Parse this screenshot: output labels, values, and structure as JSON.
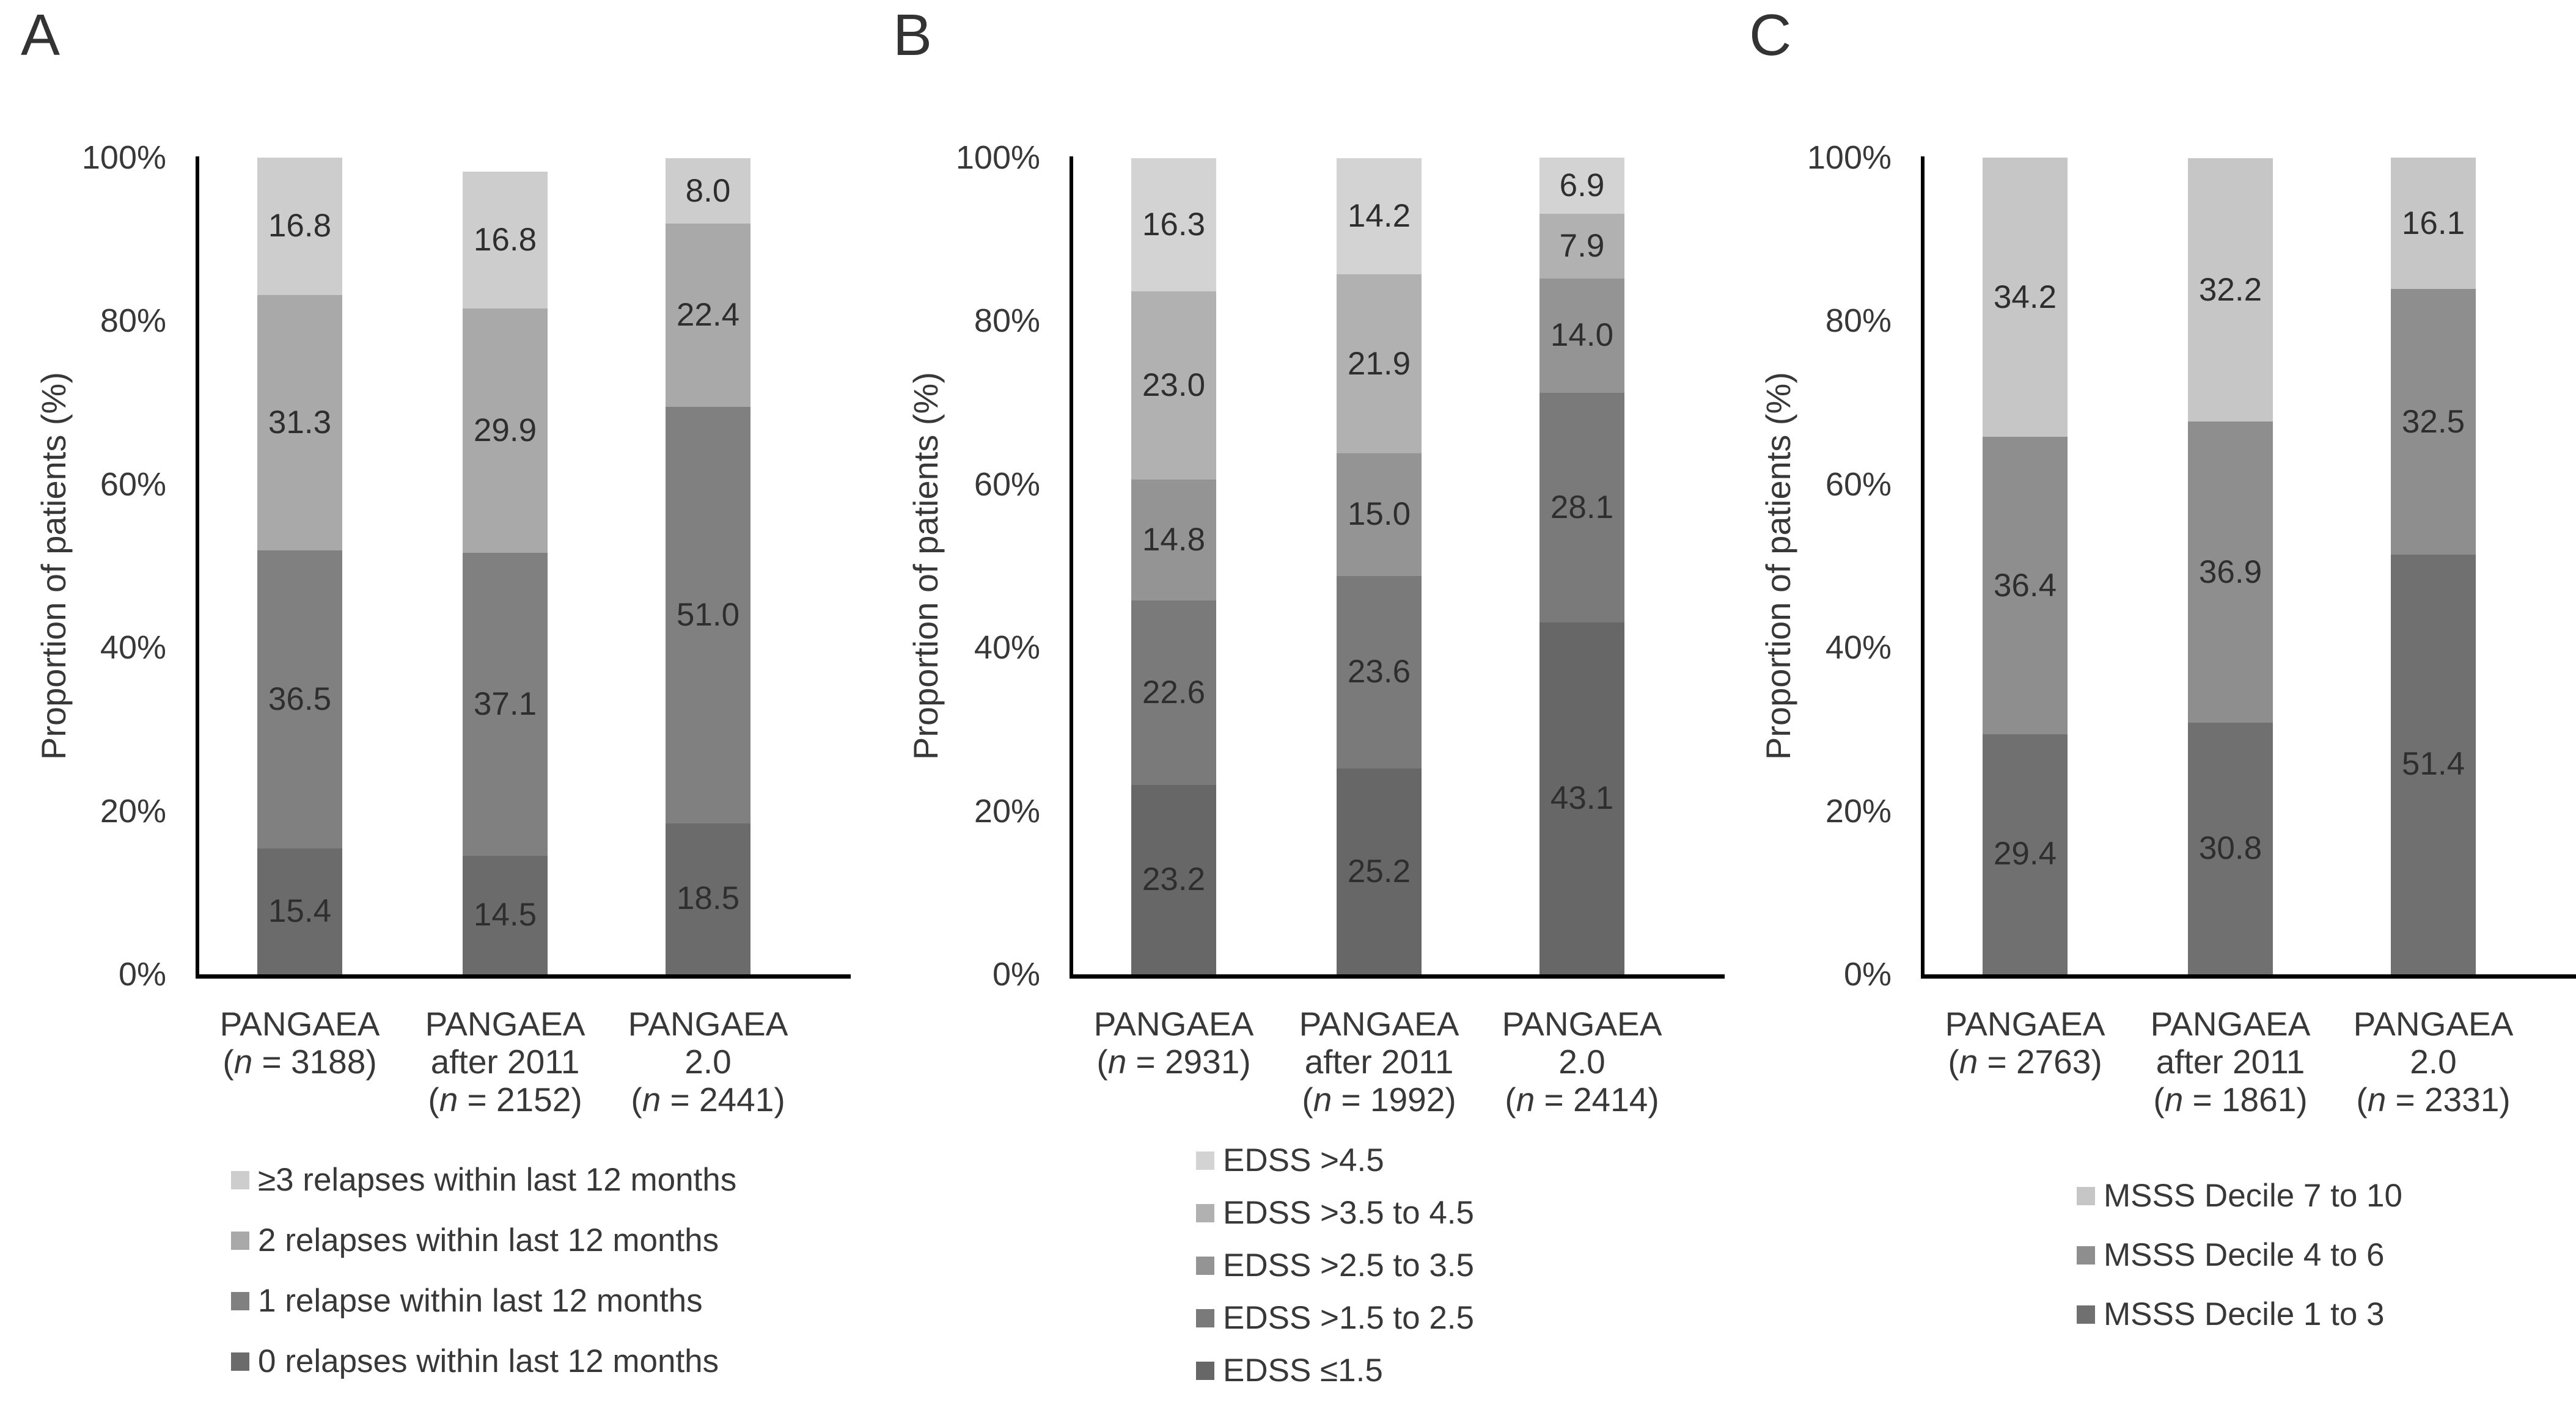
{
  "chart_data": [
    {
      "type": "bar",
      "variant": "stacked-100",
      "panel": "A",
      "ylabel": "Proportion of patients (%)",
      "yticks": [
        "0%",
        "20%",
        "40%",
        "60%",
        "80%",
        "100%"
      ],
      "ylim": [
        0,
        100
      ],
      "grid": false,
      "legend_position": "bottom",
      "categories": [
        [
          "PANGAEA",
          "(n = 3188)"
        ],
        [
          "PANGAEA",
          "after 2011",
          "(n = 2152)"
        ],
        [
          "PANGAEA",
          "2.0",
          "(n = 2441)"
        ]
      ],
      "series_order": "bottom-to-top",
      "legend_order": "reversed",
      "series": [
        {
          "name": "0 relapses within last 12 months",
          "color": "#6b6b6b",
          "values": [
            15.4,
            14.5,
            18.5
          ]
        },
        {
          "name": "1 relapse within last 12 months",
          "color": "#808080",
          "values": [
            36.5,
            37.1,
            51.0
          ]
        },
        {
          "name": "2 relapses within last 12 months",
          "color": "#a9a9a9",
          "values": [
            31.3,
            29.9,
            22.4
          ]
        },
        {
          "name": "≥3 relapses within last 12 months",
          "color": "#cdcdcd",
          "values": [
            16.8,
            16.8,
            8.0
          ]
        }
      ]
    },
    {
      "type": "bar",
      "variant": "stacked-100",
      "panel": "B",
      "ylabel": "Proportion of patients (%)",
      "yticks": [
        "0%",
        "20%",
        "40%",
        "60%",
        "80%",
        "100%"
      ],
      "ylim": [
        0,
        100
      ],
      "grid": false,
      "legend_position": "bottom",
      "categories": [
        [
          "PANGAEA",
          "(n = 2931)"
        ],
        [
          "PANGAEA",
          "after 2011",
          "(n = 1992)"
        ],
        [
          "PANGAEA",
          "2.0",
          "(n = 2414)"
        ]
      ],
      "series_order": "bottom-to-top",
      "legend_order": "reversed",
      "series": [
        {
          "name": "EDSS ≤1.5",
          "color": "#676767",
          "values": [
            23.2,
            25.2,
            43.1
          ]
        },
        {
          "name": "EDSS >1.5 to 2.5",
          "color": "#7a7a7a",
          "values": [
            22.6,
            23.6,
            28.1
          ]
        },
        {
          "name": "EDSS >2.5 to 3.5",
          "color": "#949494",
          "values": [
            14.8,
            15.0,
            14.0
          ]
        },
        {
          "name": "EDSS >3.5 to 4.5",
          "color": "#b1b1b1",
          "values": [
            23.0,
            21.9,
            7.9
          ]
        },
        {
          "name": "EDSS >4.5",
          "color": "#d3d3d3",
          "values": [
            16.3,
            14.2,
            6.9
          ]
        }
      ]
    },
    {
      "type": "bar",
      "variant": "stacked-100",
      "panel": "C",
      "ylabel": "Proportion of patients (%)",
      "yticks": [
        "0%",
        "20%",
        "40%",
        "60%",
        "80%",
        "100%"
      ],
      "ylim": [
        0,
        100
      ],
      "grid": false,
      "legend_position": "bottom",
      "categories": [
        [
          "PANGAEA",
          "(n = 2763)"
        ],
        [
          "PANGAEA",
          "after 2011",
          "(n = 1861)"
        ],
        [
          "PANGAEA",
          "2.0",
          "(n = 2331)"
        ]
      ],
      "series_order": "bottom-to-top",
      "legend_order": "reversed",
      "series": [
        {
          "name": "MSSS Decile 1 to 3",
          "color": "#707070",
          "values": [
            29.4,
            30.8,
            51.4
          ]
        },
        {
          "name": "MSSS Decile 4 to 6",
          "color": "#8e8e8e",
          "values": [
            36.4,
            36.9,
            32.5
          ]
        },
        {
          "name": "MSSS Decile 7 to 10",
          "color": "#c6c6c6",
          "values": [
            34.2,
            32.2,
            16.1
          ]
        }
      ]
    }
  ]
}
